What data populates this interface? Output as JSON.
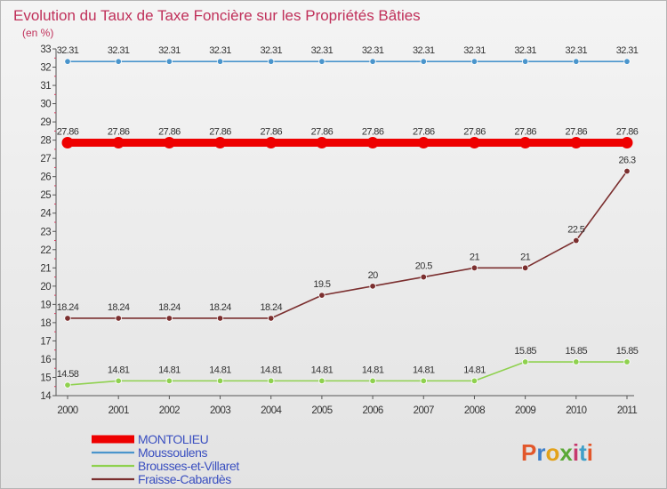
{
  "chart_data": {
    "type": "line",
    "title": "Evolution du Taux de Taxe Foncière sur les Propriétés Bâties",
    "subtitle": "(en %)",
    "x": [
      "2000",
      "2001",
      "2002",
      "2003",
      "2004",
      "2005",
      "2006",
      "2007",
      "2008",
      "2009",
      "2010",
      "2011"
    ],
    "yticks": [
      14,
      15,
      16,
      17,
      18,
      19,
      20,
      21,
      22,
      23,
      24,
      25,
      26,
      27,
      28,
      29,
      30,
      31,
      32,
      33
    ],
    "ylim": [
      14,
      33
    ],
    "series": [
      {
        "name": "Moussoulens",
        "color": "#4a95cc",
        "values": [
          32.31,
          32.31,
          32.31,
          32.31,
          32.31,
          32.31,
          32.31,
          32.31,
          32.31,
          32.31,
          32.31,
          32.31
        ],
        "labels": [
          "32.31",
          "32.31",
          "32.31",
          "32.31",
          "32.31",
          "32.31",
          "32.31",
          "32.31",
          "32.31",
          "32.31",
          "32.31",
          "32.31"
        ]
      },
      {
        "name": "MONTOLIEU",
        "color": "#ee0000",
        "values": [
          27.86,
          27.86,
          27.86,
          27.86,
          27.86,
          27.86,
          27.86,
          27.86,
          27.86,
          27.86,
          27.86,
          27.86
        ],
        "labels": [
          "27.86",
          "27.86",
          "27.86",
          "27.86",
          "27.86",
          "27.86",
          "27.86",
          "27.86",
          "27.86",
          "27.86",
          "27.86",
          "27.86"
        ]
      },
      {
        "name": "Fraisse-Cabardès",
        "color": "#7b2f2f",
        "values": [
          18.24,
          18.24,
          18.24,
          18.24,
          18.24,
          19.5,
          20,
          20.5,
          21,
          21,
          22.5,
          26.3
        ],
        "labels": [
          "18.24",
          "18.24",
          "18.24",
          "18.24",
          "18.24",
          "19.5",
          "20",
          "20.5",
          "21",
          "21",
          "22.5",
          "26.3"
        ]
      },
      {
        "name": "Brousses-et-Villaret",
        "color": "#8fd14f",
        "values": [
          14.58,
          14.81,
          14.81,
          14.81,
          14.81,
          14.81,
          14.81,
          14.81,
          14.81,
          15.85,
          15.85,
          15.85
        ],
        "labels": [
          "14.58",
          "14.81",
          "14.81",
          "14.81",
          "14.81",
          "14.81",
          "14.81",
          "14.81",
          "14.81",
          "15.85",
          "15.85",
          "15.85"
        ]
      }
    ],
    "legend": [
      {
        "name": "MONTOLIEU",
        "color": "#ee0000"
      },
      {
        "name": "Moussoulens",
        "color": "#4a95cc"
      },
      {
        "name": "Brousses-et-Villaret",
        "color": "#8fd14f"
      },
      {
        "name": "Fraisse-Cabardès",
        "color": "#7b2f2f"
      }
    ],
    "legend_position": "bottom-left",
    "grid": false
  },
  "logo": {
    "text": "Proxiti",
    "colors": [
      "#e2572b",
      "#3f7fc8",
      "#e3a21b",
      "#5aa837",
      "#c6396e",
      "#3f9fc8",
      "#e2572b"
    ]
  }
}
